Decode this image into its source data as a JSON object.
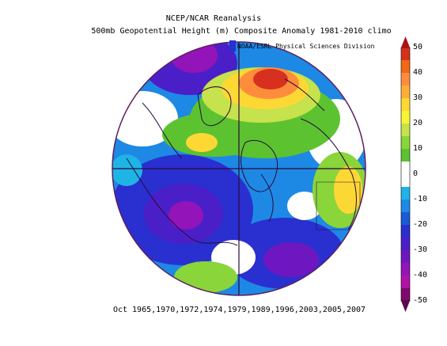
{
  "title": {
    "line1": "NCEP/NCAR Reanalysis",
    "line2": "500mb Geopotential Height (m) Composite Anomaly 1981-2010 climo"
  },
  "credit": "NOAA/ESRL Physical Sciences Division",
  "footer": "Oct 1965,1970,1972,1974,1979,1989,1996,2003,2005,2007",
  "colorbar": {
    "labels": [
      "50",
      "40",
      "30",
      "20",
      "10",
      "0",
      "-10",
      "-20",
      "-30",
      "-40",
      "-50"
    ],
    "colors": [
      "#d7301f",
      "#f16913",
      "#fd8d3c",
      "#fdae35",
      "#fdd835",
      "#f7f435",
      "#c6e24c",
      "#8ad53a",
      "#5cc230",
      "#ffffff",
      "#ffffff",
      "#1fb4e6",
      "#1e88e5",
      "#1a5bd6",
      "#2a2fd0",
      "#4b1fc8",
      "#6e17c0",
      "#9314b8",
      "#b012a8",
      "#7d0a6a"
    ]
  },
  "colors": {
    "boundary": "#5c1e5c",
    "coast": "#2a0a3a"
  }
}
